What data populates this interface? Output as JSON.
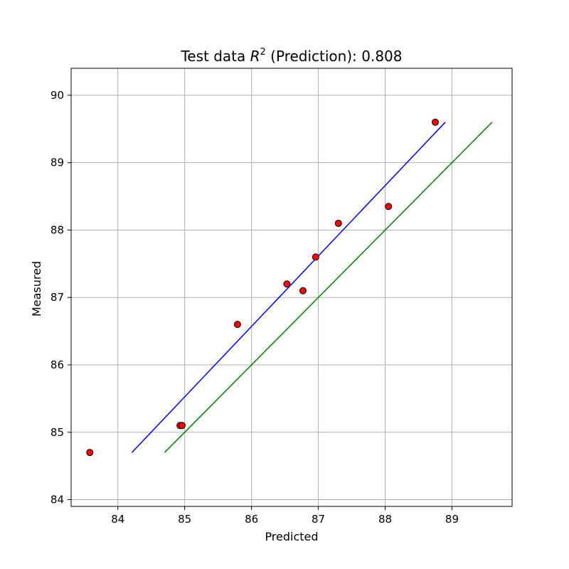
{
  "chart_data": {
    "type": "scatter",
    "title": {
      "prefix": "Test data ",
      "r_symbol": "R",
      "r_exponent": "2",
      "suffix": " (Prediction): 0.808"
    },
    "xlabel": "Predicted",
    "ylabel": "Measured",
    "xlim": [
      83.3,
      89.9
    ],
    "ylim": [
      83.9,
      90.4
    ],
    "xticks": [
      84,
      85,
      86,
      87,
      88,
      89
    ],
    "yticks": [
      84,
      85,
      86,
      87,
      88,
      89,
      90
    ],
    "grid": true,
    "points": {
      "color": "#ff0000",
      "edge_color": "#000000",
      "x": [
        83.58,
        84.93,
        84.96,
        85.79,
        86.53,
        86.77,
        86.96,
        87.3,
        88.05,
        88.75
      ],
      "y": [
        84.7,
        85.1,
        85.1,
        86.6,
        87.2,
        87.1,
        87.6,
        88.1,
        88.35,
        89.6
      ]
    },
    "fit_line": {
      "color": "#0000ff",
      "x": [
        84.21,
        88.9
      ],
      "y": [
        84.7,
        89.6
      ]
    },
    "identity_line": {
      "color": "#008000",
      "x": [
        84.7,
        89.6
      ],
      "y": [
        84.7,
        89.6
      ]
    }
  }
}
